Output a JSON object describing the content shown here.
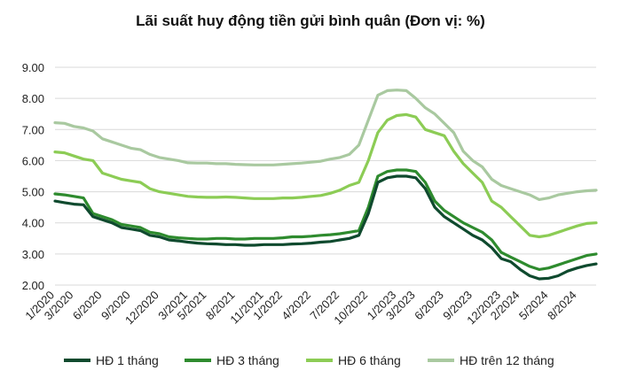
{
  "chart_data": {
    "type": "line",
    "title": "Lãi suất huy động tiền gửi bình quân (Đơn vị: %)",
    "xlabel": "",
    "ylabel": "",
    "ylim": [
      2.0,
      9.0
    ],
    "yticks": [
      "9.00",
      "8.00",
      "7.00",
      "6.00",
      "5.00",
      "4.00",
      "3.00",
      "2.00"
    ],
    "ytick_values": [
      9,
      8,
      7,
      6,
      5,
      4,
      3,
      2
    ],
    "grid": "horizontal",
    "legend_position": "bottom",
    "x_start": "1/2020",
    "x_end": "10/2024",
    "xticks": [
      "1/2020",
      "3/2020",
      "6/2020",
      "9/2020",
      "12/2020",
      "3/2021",
      "5/2021",
      "8/2021",
      "11/2021",
      "1/2022",
      "4/2022",
      "7/2022",
      "10/2022",
      "1/2023",
      "3/2023",
      "6/2023",
      "9/2023",
      "12/2023",
      "2/2024",
      "5/2024",
      "8/2024"
    ],
    "series": [
      {
        "name": "HĐ 1 tháng",
        "color": "#0f4a2e",
        "points": [
          [
            "1/2020",
            4.7
          ],
          [
            "2/2020",
            4.65
          ],
          [
            "3/2020",
            4.6
          ],
          [
            "4/2020",
            4.58
          ],
          [
            "5/2020",
            4.2
          ],
          [
            "6/2020",
            4.1
          ],
          [
            "7/2020",
            4.0
          ],
          [
            "8/2020",
            3.85
          ],
          [
            "9/2020",
            3.8
          ],
          [
            "10/2020",
            3.75
          ],
          [
            "11/2020",
            3.6
          ],
          [
            "12/2020",
            3.55
          ],
          [
            "1/2021",
            3.45
          ],
          [
            "2/2021",
            3.42
          ],
          [
            "3/2021",
            3.38
          ],
          [
            "4/2021",
            3.35
          ],
          [
            "5/2021",
            3.33
          ],
          [
            "6/2021",
            3.32
          ],
          [
            "7/2021",
            3.3
          ],
          [
            "8/2021",
            3.3
          ],
          [
            "9/2021",
            3.28
          ],
          [
            "10/2021",
            3.28
          ],
          [
            "11/2021",
            3.3
          ],
          [
            "12/2021",
            3.3
          ],
          [
            "1/2022",
            3.3
          ],
          [
            "2/2022",
            3.32
          ],
          [
            "3/2022",
            3.33
          ],
          [
            "4/2022",
            3.35
          ],
          [
            "5/2022",
            3.38
          ],
          [
            "6/2022",
            3.4
          ],
          [
            "7/2022",
            3.45
          ],
          [
            "8/2022",
            3.5
          ],
          [
            "9/2022",
            3.6
          ],
          [
            "10/2022",
            4.3
          ],
          [
            "11/2022",
            5.3
          ],
          [
            "12/2022",
            5.45
          ],
          [
            "1/2023",
            5.5
          ],
          [
            "2/2023",
            5.5
          ],
          [
            "3/2023",
            5.45
          ],
          [
            "4/2023",
            5.1
          ],
          [
            "5/2023",
            4.5
          ],
          [
            "6/2023",
            4.2
          ],
          [
            "7/2023",
            4.0
          ],
          [
            "8/2023",
            3.8
          ],
          [
            "9/2023",
            3.6
          ],
          [
            "10/2023",
            3.45
          ],
          [
            "11/2023",
            3.2
          ],
          [
            "12/2023",
            2.85
          ],
          [
            "1/2024",
            2.75
          ],
          [
            "2/2024",
            2.5
          ],
          [
            "3/2024",
            2.3
          ],
          [
            "4/2024",
            2.2
          ],
          [
            "5/2024",
            2.22
          ],
          [
            "6/2024",
            2.3
          ],
          [
            "7/2024",
            2.45
          ],
          [
            "8/2024",
            2.55
          ],
          [
            "9/2024",
            2.63
          ],
          [
            "10/2024",
            2.68
          ]
        ]
      },
      {
        "name": "HĐ 3 tháng",
        "color": "#2e8b2e",
        "points": [
          [
            "1/2020",
            4.93
          ],
          [
            "2/2020",
            4.9
          ],
          [
            "3/2020",
            4.85
          ],
          [
            "4/2020",
            4.8
          ],
          [
            "5/2020",
            4.3
          ],
          [
            "6/2020",
            4.2
          ],
          [
            "7/2020",
            4.1
          ],
          [
            "8/2020",
            3.95
          ],
          [
            "9/2020",
            3.9
          ],
          [
            "10/2020",
            3.85
          ],
          [
            "11/2020",
            3.7
          ],
          [
            "12/2020",
            3.65
          ],
          [
            "1/2021",
            3.55
          ],
          [
            "2/2021",
            3.52
          ],
          [
            "3/2021",
            3.5
          ],
          [
            "4/2021",
            3.48
          ],
          [
            "5/2021",
            3.48
          ],
          [
            "6/2021",
            3.5
          ],
          [
            "7/2021",
            3.5
          ],
          [
            "8/2021",
            3.48
          ],
          [
            "9/2021",
            3.48
          ],
          [
            "10/2021",
            3.5
          ],
          [
            "11/2021",
            3.5
          ],
          [
            "12/2021",
            3.5
          ],
          [
            "1/2022",
            3.52
          ],
          [
            "2/2022",
            3.55
          ],
          [
            "3/2022",
            3.55
          ],
          [
            "4/2022",
            3.57
          ],
          [
            "5/2022",
            3.6
          ],
          [
            "6/2022",
            3.62
          ],
          [
            "7/2022",
            3.65
          ],
          [
            "8/2022",
            3.7
          ],
          [
            "9/2022",
            3.75
          ],
          [
            "10/2022",
            4.5
          ],
          [
            "11/2022",
            5.5
          ],
          [
            "12/2022",
            5.65
          ],
          [
            "1/2023",
            5.7
          ],
          [
            "2/2023",
            5.7
          ],
          [
            "3/2023",
            5.65
          ],
          [
            "4/2023",
            5.3
          ],
          [
            "5/2023",
            4.7
          ],
          [
            "6/2023",
            4.4
          ],
          [
            "7/2023",
            4.2
          ],
          [
            "8/2023",
            4.0
          ],
          [
            "9/2023",
            3.85
          ],
          [
            "10/2023",
            3.7
          ],
          [
            "11/2023",
            3.45
          ],
          [
            "12/2023",
            3.05
          ],
          [
            "1/2024",
            2.9
          ],
          [
            "2/2024",
            2.75
          ],
          [
            "3/2024",
            2.6
          ],
          [
            "4/2024",
            2.5
          ],
          [
            "5/2024",
            2.55
          ],
          [
            "6/2024",
            2.65
          ],
          [
            "7/2024",
            2.75
          ],
          [
            "8/2024",
            2.85
          ],
          [
            "9/2024",
            2.95
          ],
          [
            "10/2024",
            3.0
          ]
        ]
      },
      {
        "name": "HĐ 6 tháng",
        "color": "#8ccc55",
        "points": [
          [
            "1/2020",
            6.28
          ],
          [
            "2/2020",
            6.25
          ],
          [
            "3/2020",
            6.15
          ],
          [
            "4/2020",
            6.05
          ],
          [
            "5/2020",
            6.0
          ],
          [
            "6/2020",
            5.6
          ],
          [
            "7/2020",
            5.5
          ],
          [
            "8/2020",
            5.4
          ],
          [
            "9/2020",
            5.35
          ],
          [
            "10/2020",
            5.3
          ],
          [
            "11/2020",
            5.1
          ],
          [
            "12/2020",
            5.0
          ],
          [
            "1/2021",
            4.95
          ],
          [
            "2/2021",
            4.9
          ],
          [
            "3/2021",
            4.85
          ],
          [
            "4/2021",
            4.83
          ],
          [
            "5/2021",
            4.82
          ],
          [
            "6/2021",
            4.82
          ],
          [
            "7/2021",
            4.83
          ],
          [
            "8/2021",
            4.82
          ],
          [
            "9/2021",
            4.8
          ],
          [
            "10/2021",
            4.78
          ],
          [
            "11/2021",
            4.78
          ],
          [
            "12/2021",
            4.78
          ],
          [
            "1/2022",
            4.8
          ],
          [
            "2/2022",
            4.8
          ],
          [
            "3/2022",
            4.82
          ],
          [
            "4/2022",
            4.85
          ],
          [
            "5/2022",
            4.88
          ],
          [
            "6/2022",
            4.95
          ],
          [
            "7/2022",
            5.05
          ],
          [
            "8/2022",
            5.2
          ],
          [
            "9/2022",
            5.3
          ],
          [
            "10/2022",
            6.0
          ],
          [
            "11/2022",
            6.9
          ],
          [
            "12/2022",
            7.3
          ],
          [
            "1/2023",
            7.45
          ],
          [
            "2/2023",
            7.48
          ],
          [
            "3/2023",
            7.4
          ],
          [
            "4/2023",
            7.0
          ],
          [
            "5/2023",
            6.9
          ],
          [
            "6/2023",
            6.8
          ],
          [
            "7/2023",
            6.3
          ],
          [
            "8/2023",
            5.9
          ],
          [
            "9/2023",
            5.6
          ],
          [
            "10/2023",
            5.3
          ],
          [
            "11/2023",
            4.7
          ],
          [
            "12/2023",
            4.5
          ],
          [
            "1/2024",
            4.2
          ],
          [
            "2/2024",
            3.9
          ],
          [
            "3/2024",
            3.6
          ],
          [
            "4/2024",
            3.55
          ],
          [
            "5/2024",
            3.6
          ],
          [
            "6/2024",
            3.7
          ],
          [
            "7/2024",
            3.8
          ],
          [
            "8/2024",
            3.9
          ],
          [
            "9/2024",
            3.98
          ],
          [
            "10/2024",
            4.0
          ]
        ]
      },
      {
        "name": "HĐ trên 12 tháng",
        "color": "#a9c9a0",
        "points": [
          [
            "1/2020",
            7.22
          ],
          [
            "2/2020",
            7.2
          ],
          [
            "3/2020",
            7.1
          ],
          [
            "4/2020",
            7.05
          ],
          [
            "5/2020",
            6.95
          ],
          [
            "6/2020",
            6.7
          ],
          [
            "7/2020",
            6.6
          ],
          [
            "8/2020",
            6.5
          ],
          [
            "9/2020",
            6.4
          ],
          [
            "10/2020",
            6.35
          ],
          [
            "11/2020",
            6.2
          ],
          [
            "12/2020",
            6.1
          ],
          [
            "1/2021",
            6.05
          ],
          [
            "2/2021",
            6.0
          ],
          [
            "3/2021",
            5.93
          ],
          [
            "4/2021",
            5.92
          ],
          [
            "5/2021",
            5.92
          ],
          [
            "6/2021",
            5.9
          ],
          [
            "7/2021",
            5.9
          ],
          [
            "8/2021",
            5.88
          ],
          [
            "9/2021",
            5.87
          ],
          [
            "10/2021",
            5.86
          ],
          [
            "11/2021",
            5.86
          ],
          [
            "12/2021",
            5.86
          ],
          [
            "1/2022",
            5.88
          ],
          [
            "2/2022",
            5.9
          ],
          [
            "3/2022",
            5.92
          ],
          [
            "4/2022",
            5.95
          ],
          [
            "5/2022",
            5.98
          ],
          [
            "6/2022",
            6.05
          ],
          [
            "7/2022",
            6.1
          ],
          [
            "8/2022",
            6.2
          ],
          [
            "9/2022",
            6.5
          ],
          [
            "10/2022",
            7.3
          ],
          [
            "11/2022",
            8.1
          ],
          [
            "12/2022",
            8.25
          ],
          [
            "1/2023",
            8.27
          ],
          [
            "2/2023",
            8.25
          ],
          [
            "3/2023",
            8.0
          ],
          [
            "4/2023",
            7.7
          ],
          [
            "5/2023",
            7.5
          ],
          [
            "6/2023",
            7.2
          ],
          [
            "7/2023",
            6.9
          ],
          [
            "8/2023",
            6.3
          ],
          [
            "9/2023",
            6.0
          ],
          [
            "10/2023",
            5.8
          ],
          [
            "11/2023",
            5.4
          ],
          [
            "12/2023",
            5.2
          ],
          [
            "1/2024",
            5.1
          ],
          [
            "2/2024",
            5.0
          ],
          [
            "3/2024",
            4.9
          ],
          [
            "4/2024",
            4.75
          ],
          [
            "5/2024",
            4.8
          ],
          [
            "6/2024",
            4.9
          ],
          [
            "7/2024",
            4.95
          ],
          [
            "8/2024",
            5.0
          ],
          [
            "9/2024",
            5.03
          ],
          [
            "10/2024",
            5.05
          ]
        ]
      }
    ]
  }
}
